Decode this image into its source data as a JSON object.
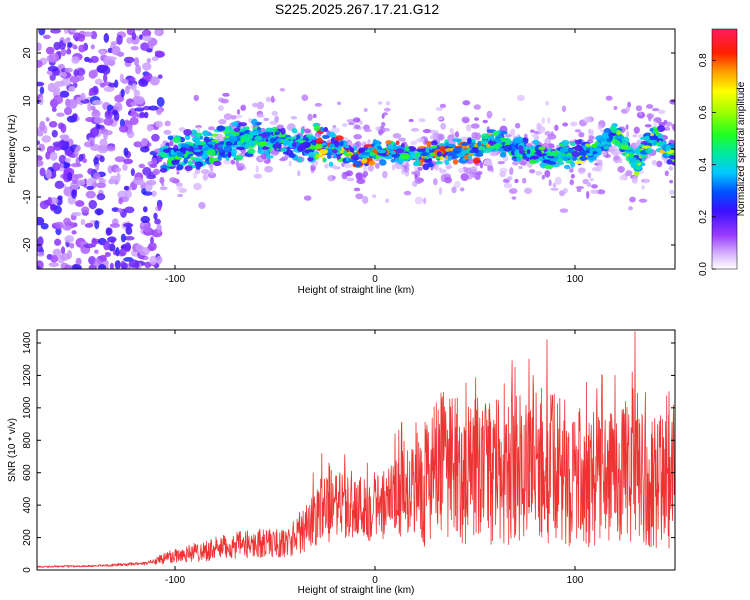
{
  "title": "S225.2025.267.17.21.G12",
  "colors": {
    "snr_line": "#ee3333",
    "axis": "#000000"
  },
  "chart_data": [
    {
      "type": "heatmap",
      "xlabel": "Height of straight line (km)",
      "ylabel": "Frequency (Hz)",
      "xlim": [
        -169,
        150
      ],
      "ylim": [
        -25,
        25
      ],
      "xticks": [
        "-100",
        "0",
        "100"
      ],
      "xtick_values": [
        -100,
        0,
        100
      ],
      "yticks": [
        "-20",
        "-10",
        "0",
        "10",
        "20"
      ],
      "ytick_values": [
        -20,
        -10,
        0,
        10,
        20
      ],
      "colorbar": {
        "label": "Normalized spectral amplitude",
        "ticks": [
          "0.0",
          "0.2",
          "0.4",
          "0.6",
          "0.8"
        ],
        "tick_values": [
          0.0,
          0.2,
          0.4,
          0.6,
          0.8
        ],
        "range": [
          0,
          0.92
        ]
      },
      "ridge_frequency_hz": [
        {
          "x": -110,
          "y": -1.5
        },
        {
          "x": -100,
          "y": -1
        },
        {
          "x": -90,
          "y": 0
        },
        {
          "x": -80,
          "y": 0.5
        },
        {
          "x": -70,
          "y": 1.5
        },
        {
          "x": -60,
          "y": 2.5
        },
        {
          "x": -50,
          "y": 2.0
        },
        {
          "x": -40,
          "y": 1.0
        },
        {
          "x": -30,
          "y": 1.0
        },
        {
          "x": -20,
          "y": 0.0
        },
        {
          "x": -10,
          "y": -1.5
        },
        {
          "x": 0,
          "y": -0.5
        },
        {
          "x": 10,
          "y": -0.5
        },
        {
          "x": 20,
          "y": -1.0
        },
        {
          "x": 30,
          "y": -1.0
        },
        {
          "x": 40,
          "y": -0.5
        },
        {
          "x": 50,
          "y": -0.5
        },
        {
          "x": 60,
          "y": 1.5
        },
        {
          "x": 70,
          "y": 0.0
        },
        {
          "x": 80,
          "y": -1.0
        },
        {
          "x": 90,
          "y": -1.5
        },
        {
          "x": 100,
          "y": -1.0
        },
        {
          "x": 110,
          "y": -0.5
        },
        {
          "x": 120,
          "y": 3.5
        },
        {
          "x": 130,
          "y": -3.0
        },
        {
          "x": 140,
          "y": 3.0
        },
        {
          "x": 148,
          "y": -1.0
        }
      ],
      "noise_region_km": [
        -169,
        -107
      ]
    },
    {
      "type": "line",
      "xlabel": "Height of straight line (km)",
      "ylabel": "SNR (10 * v/v)",
      "xlim": [
        -169,
        150
      ],
      "ylim": [
        0,
        1480
      ],
      "xticks": [
        "-100",
        "0",
        "100"
      ],
      "xtick_values": [
        -100,
        0,
        100
      ],
      "yticks": [
        "0",
        "200",
        "400",
        "600",
        "800",
        "1000",
        "1200",
        "1400"
      ],
      "ytick_values": [
        0,
        200,
        400,
        600,
        800,
        1000,
        1200,
        1400
      ],
      "trend": [
        {
          "x": -169,
          "y": 20
        },
        {
          "x": -140,
          "y": 25
        },
        {
          "x": -115,
          "y": 40
        },
        {
          "x": -100,
          "y": 90
        },
        {
          "x": -85,
          "y": 120
        },
        {
          "x": -70,
          "y": 150
        },
        {
          "x": -55,
          "y": 170
        },
        {
          "x": -45,
          "y": 160
        },
        {
          "x": -35,
          "y": 250
        },
        {
          "x": -25,
          "y": 370
        },
        {
          "x": -15,
          "y": 400
        },
        {
          "x": -5,
          "y": 380
        },
        {
          "x": 5,
          "y": 400
        },
        {
          "x": 15,
          "y": 470
        },
        {
          "x": 25,
          "y": 560
        },
        {
          "x": 35,
          "y": 620
        },
        {
          "x": 45,
          "y": 600
        },
        {
          "x": 55,
          "y": 580
        },
        {
          "x": 65,
          "y": 620
        },
        {
          "x": 75,
          "y": 650
        },
        {
          "x": 85,
          "y": 640
        },
        {
          "x": 95,
          "y": 600
        },
        {
          "x": 105,
          "y": 560
        },
        {
          "x": 115,
          "y": 580
        },
        {
          "x": 125,
          "y": 600
        },
        {
          "x": 135,
          "y": 560
        },
        {
          "x": 145,
          "y": 520
        },
        {
          "x": 150,
          "y": 500
        }
      ],
      "peaks": [
        {
          "x": 86,
          "y": 1420
        },
        {
          "x": 130,
          "y": 1470
        },
        {
          "x": 70,
          "y": 1250
        },
        {
          "x": 77,
          "y": 1300
        },
        {
          "x": 33,
          "y": 1090
        },
        {
          "x": 10,
          "y": 840
        },
        {
          "x": -23,
          "y": 660
        },
        {
          "x": 50,
          "y": 1050
        },
        {
          "x": 120,
          "y": 1200
        },
        {
          "x": 147,
          "y": 1100
        }
      ]
    }
  ]
}
